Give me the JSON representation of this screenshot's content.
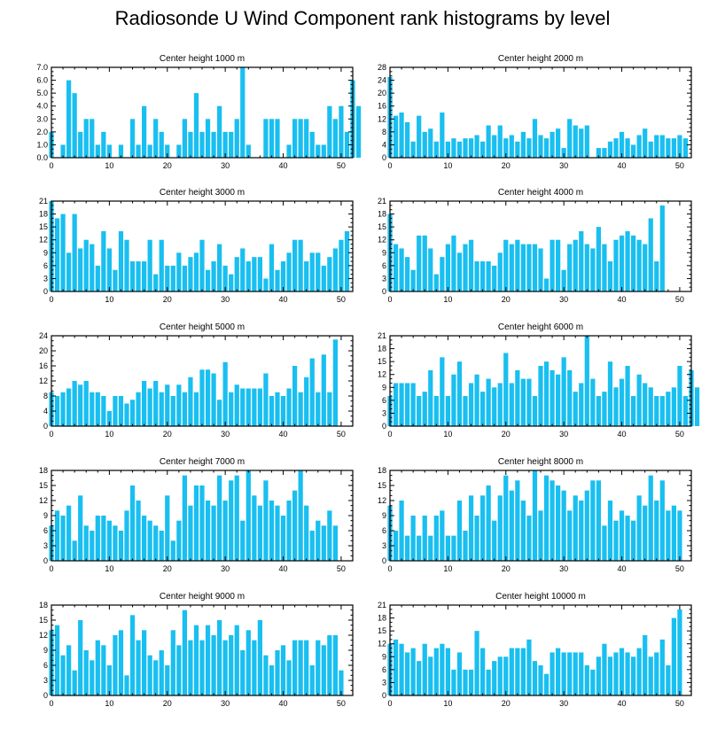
{
  "figure": {
    "title": "Radiosonde U Wind Component rank histograms by level"
  },
  "colors": {
    "bar": "#19bff0",
    "frame": "#000000"
  },
  "chart_data": [
    {
      "type": "bar",
      "title": "Center height 1000 m",
      "xlim": [
        0,
        52
      ],
      "xticks": [
        0,
        10,
        20,
        30,
        40,
        50
      ],
      "ylim": [
        0,
        7
      ],
      "yticks": [
        0,
        1,
        2,
        3,
        4,
        5,
        6,
        7
      ],
      "ytick_labels": [
        "0.0",
        "1.0",
        "2.0",
        "3.0",
        "4.0",
        "5.0",
        "6.0",
        "7.0"
      ],
      "values": [
        2,
        0,
        1,
        6,
        5,
        2,
        3,
        3,
        1,
        2,
        1,
        0,
        1,
        0,
        3,
        1,
        4,
        1,
        3,
        2,
        1,
        0,
        1,
        3,
        2,
        5,
        2,
        3,
        2,
        4,
        2,
        2,
        3,
        7,
        1,
        0,
        0,
        3,
        3,
        3,
        0,
        1,
        3,
        3,
        3,
        2,
        1,
        1,
        4,
        3,
        4,
        2,
        6,
        4
      ]
    },
    {
      "type": "bar",
      "title": "Center height 2000 m",
      "xlim": [
        0,
        52
      ],
      "xticks": [
        0,
        10,
        20,
        30,
        40,
        50
      ],
      "ylim": [
        0,
        28
      ],
      "yticks": [
        0,
        4,
        8,
        12,
        16,
        20,
        24,
        28
      ],
      "ytick_labels": [
        "0",
        "4",
        "8",
        "12",
        "16",
        "20",
        "24",
        "28"
      ],
      "values": [
        25,
        13,
        14,
        11,
        5,
        13,
        8,
        9,
        5,
        14,
        5,
        6,
        5,
        6,
        6,
        7,
        5,
        10,
        7,
        10,
        6,
        7,
        5,
        8,
        6,
        12,
        7,
        6,
        8,
        9,
        3,
        12,
        10,
        9,
        10,
        0,
        3,
        3,
        5,
        6,
        8,
        6,
        4,
        7,
        9,
        5,
        7,
        7,
        6,
        6,
        7,
        6
      ]
    },
    {
      "type": "bar",
      "title": "Center height 3000 m",
      "xlim": [
        0,
        52
      ],
      "xticks": [
        0,
        10,
        20,
        30,
        40,
        50
      ],
      "ylim": [
        0,
        21
      ],
      "yticks": [
        0,
        3,
        6,
        9,
        12,
        15,
        18,
        21
      ],
      "ytick_labels": [
        "0",
        "3",
        "6",
        "9",
        "12",
        "15",
        "18",
        "21"
      ],
      "values": [
        21,
        17,
        18,
        9,
        18,
        10,
        12,
        11,
        6,
        14,
        10,
        5,
        14,
        12,
        7,
        7,
        7,
        12,
        4,
        12,
        6,
        6,
        9,
        6,
        8,
        9,
        12,
        5,
        7,
        11,
        6,
        4,
        8,
        10,
        7,
        8,
        8,
        3,
        11,
        5,
        7,
        9,
        12,
        12,
        7,
        9,
        9,
        6,
        8,
        10,
        12,
        14
      ]
    },
    {
      "type": "bar",
      "title": "Center height 4000 m",
      "xlim": [
        0,
        52
      ],
      "xticks": [
        0,
        10,
        20,
        30,
        40,
        50
      ],
      "ylim": [
        0,
        21
      ],
      "yticks": [
        0,
        3,
        6,
        9,
        12,
        15,
        18,
        21
      ],
      "ytick_labels": [
        "0",
        "3",
        "6",
        "9",
        "12",
        "15",
        "18",
        "21"
      ],
      "values": [
        18,
        11,
        10,
        8,
        5,
        13,
        13,
        10,
        4,
        8,
        11,
        13,
        9,
        11,
        12,
        7,
        7,
        7,
        6,
        9,
        12,
        11,
        12,
        11,
        11,
        11,
        10,
        3,
        12,
        12,
        5,
        11,
        12,
        14,
        11,
        10,
        15,
        11,
        7,
        12,
        13,
        14,
        13,
        12,
        11,
        17,
        7,
        20
      ]
    },
    {
      "type": "bar",
      "title": "Center height 5000 m",
      "xlim": [
        0,
        52
      ],
      "xticks": [
        0,
        10,
        20,
        30,
        40,
        50
      ],
      "ylim": [
        0,
        24
      ],
      "yticks": [
        0,
        4,
        8,
        12,
        16,
        20,
        24
      ],
      "ytick_labels": [
        "0",
        "4",
        "8",
        "12",
        "16",
        "20",
        "24"
      ],
      "values": [
        9,
        8,
        9,
        10,
        12,
        11,
        12,
        9,
        9,
        8,
        4,
        8,
        8,
        6,
        7,
        9,
        12,
        10,
        12,
        9,
        11,
        8,
        11,
        9,
        13,
        9,
        15,
        15,
        14,
        7,
        17,
        9,
        11,
        10,
        10,
        10,
        10,
        14,
        8,
        9,
        8,
        10,
        16,
        9,
        13,
        18,
        9,
        19,
        9,
        23
      ]
    },
    {
      "type": "bar",
      "title": "Center height 6000 m",
      "xlim": [
        0,
        52
      ],
      "xticks": [
        0,
        10,
        20,
        30,
        40,
        50
      ],
      "ylim": [
        0,
        21
      ],
      "yticks": [
        0,
        3,
        6,
        9,
        12,
        15,
        18,
        21
      ],
      "ytick_labels": [
        "0",
        "3",
        "6",
        "9",
        "12",
        "15",
        "18",
        "21"
      ],
      "values": [
        7,
        10,
        10,
        10,
        10,
        7,
        8,
        13,
        7,
        16,
        7,
        12,
        15,
        7,
        10,
        12,
        8,
        11,
        9,
        10,
        17,
        10,
        13,
        11,
        11,
        7,
        14,
        15,
        13,
        12,
        16,
        13,
        8,
        10,
        21,
        11,
        7,
        8,
        15,
        9,
        11,
        14,
        7,
        12,
        10,
        9,
        7,
        7,
        8,
        9,
        14,
        7,
        13,
        9
      ]
    },
    {
      "type": "bar",
      "title": "Center height 7000 m",
      "xlim": [
        0,
        52
      ],
      "xticks": [
        0,
        10,
        20,
        30,
        40,
        50
      ],
      "ylim": [
        0,
        18
      ],
      "yticks": [
        0,
        3,
        6,
        9,
        12,
        15,
        18
      ],
      "ytick_labels": [
        "0",
        "3",
        "6",
        "9",
        "12",
        "15",
        "18"
      ],
      "values": [
        7,
        10,
        9,
        11,
        4,
        13,
        7,
        6,
        9,
        9,
        8,
        7,
        6,
        10,
        15,
        12,
        9,
        8,
        7,
        6,
        13,
        4,
        8,
        17,
        11,
        15,
        15,
        12,
        11,
        17,
        12,
        16,
        17,
        8,
        18,
        13,
        11,
        16,
        12,
        11,
        9,
        12,
        14,
        18,
        11,
        6,
        8,
        7,
        10,
        7
      ]
    },
    {
      "type": "bar",
      "title": "Center height 8000 m",
      "xlim": [
        0,
        52
      ],
      "xticks": [
        0,
        10,
        20,
        30,
        40,
        50
      ],
      "ylim": [
        0,
        18
      ],
      "yticks": [
        0,
        3,
        6,
        9,
        12,
        15,
        18
      ],
      "ytick_labels": [
        "0",
        "3",
        "6",
        "9",
        "12",
        "15",
        "18"
      ],
      "values": [
        11,
        6,
        12,
        5,
        9,
        5,
        9,
        5,
        9,
        10,
        5,
        5,
        12,
        6,
        13,
        9,
        13,
        15,
        8,
        13,
        17,
        14,
        16,
        12,
        9,
        18,
        10,
        17,
        16,
        15,
        14,
        10,
        13,
        12,
        14,
        16,
        16,
        7,
        12,
        8,
        10,
        9,
        8,
        13,
        11,
        17,
        12,
        16,
        10,
        11,
        10
      ]
    },
    {
      "type": "bar",
      "title": "Center height 9000 m",
      "xlim": [
        0,
        52
      ],
      "xticks": [
        0,
        10,
        20,
        30,
        40,
        50
      ],
      "ylim": [
        0,
        18
      ],
      "yticks": [
        0,
        3,
        6,
        9,
        12,
        15,
        18
      ],
      "ytick_labels": [
        "0",
        "3",
        "6",
        "9",
        "12",
        "15",
        "18"
      ],
      "values": [
        13,
        14,
        8,
        10,
        5,
        15,
        9,
        7,
        11,
        10,
        6,
        12,
        13,
        4,
        16,
        11,
        13,
        8,
        7,
        9,
        6,
        13,
        10,
        17,
        11,
        14,
        11,
        14,
        12,
        15,
        11,
        12,
        14,
        9,
        13,
        11,
        15,
        8,
        6,
        9,
        10,
        7,
        11,
        11,
        11,
        6,
        11,
        10,
        12,
        12,
        5
      ]
    },
    {
      "type": "bar",
      "title": "Center height 10000 m",
      "xlim": [
        0,
        52
      ],
      "xticks": [
        0,
        10,
        20,
        30,
        40,
        50
      ],
      "ylim": [
        0,
        21
      ],
      "yticks": [
        0,
        3,
        6,
        9,
        12,
        15,
        18,
        21
      ],
      "ytick_labels": [
        "0",
        "3",
        "6",
        "9",
        "12",
        "15",
        "18",
        "21"
      ],
      "values": [
        12,
        13,
        12,
        10,
        11,
        8,
        12,
        9,
        11,
        12,
        11,
        6,
        10,
        6,
        6,
        15,
        11,
        6,
        8,
        9,
        9,
        11,
        11,
        11,
        13,
        8,
        7,
        5,
        10,
        11,
        10,
        10,
        10,
        10,
        7,
        6,
        9,
        12,
        9,
        10,
        11,
        10,
        9,
        11,
        14,
        9,
        10,
        13,
        7,
        18,
        20
      ]
    }
  ]
}
